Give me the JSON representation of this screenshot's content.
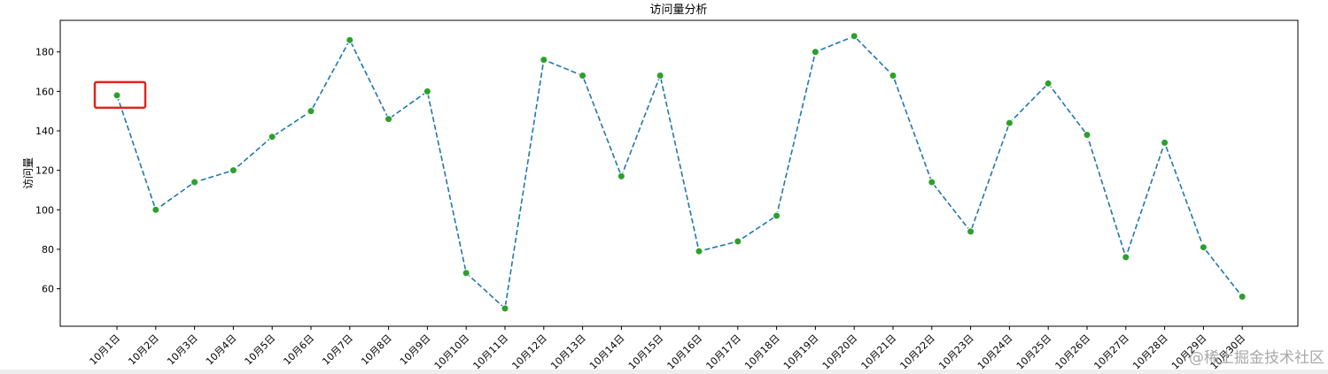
{
  "chart_data": {
    "type": "line",
    "title": "访问量分析",
    "xlabel": "",
    "ylabel": "访问量",
    "categories": [
      "10月1日",
      "10月2日",
      "10月3日",
      "10月4日",
      "10月5日",
      "10月6日",
      "10月7日",
      "10月8日",
      "10月9日",
      "10月10日",
      "10月11日",
      "10月12日",
      "10月13日",
      "10月14日",
      "10月15日",
      "10月16日",
      "10月17日",
      "10月18日",
      "10月19日",
      "10月20日",
      "10月21日",
      "10月22日",
      "10月23日",
      "10月24日",
      "10月25日",
      "10月26日",
      "10月27日",
      "10月28日",
      "10月29日",
      "10月30日"
    ],
    "values": [
      158,
      100,
      114,
      120,
      137,
      150,
      186,
      146,
      160,
      68,
      50,
      176,
      168,
      117,
      168,
      79,
      84,
      97,
      180,
      188,
      168,
      114,
      89,
      144,
      164,
      138,
      76,
      134,
      81,
      56
    ],
    "ylim": [
      41,
      196
    ],
    "yticks": [
      60,
      80,
      100,
      120,
      140,
      160,
      180
    ],
    "line_style": "dashed",
    "line_color": "#1f77b4",
    "marker_color": "#2ca02c",
    "grid": false,
    "highlight_index": 0,
    "highlight_color": "#e0251b"
  },
  "watermark": "@稀土掘金技术社区"
}
